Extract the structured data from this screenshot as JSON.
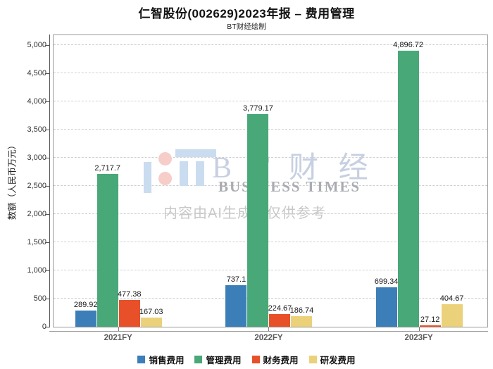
{
  "chart_data": {
    "type": "bar",
    "title": "仁智股份(002629)2023年报 – 费用管理",
    "subtitle": "BT财经绘制",
    "ylabel": "数额（人民币万元）",
    "ylim": [
      0,
      5000
    ],
    "ytick_step": 500,
    "grid": "horizontal-dashed",
    "legend_position": "bottom",
    "categories": [
      "2021FY",
      "2022FY",
      "2023FY"
    ],
    "series": [
      {
        "name": "销售费用",
        "color": "#3b7eb8",
        "values": [
          289.92,
          737.1,
          699.34
        ]
      },
      {
        "name": "管理费用",
        "color": "#49a878",
        "values": [
          2717.7,
          3779.17,
          4896.72
        ]
      },
      {
        "name": "财务费用",
        "color": "#e8502a",
        "values": [
          477.38,
          224.67,
          27.12
        ]
      },
      {
        "name": "研发费用",
        "color": "#ebd179",
        "values": [
          167.03,
          186.74,
          404.67
        ]
      }
    ]
  },
  "watermark": {
    "brand_cn": "B T 财 经",
    "brand_en": "BUSINESS TIMES",
    "disclaimer": "内容由AI生成，仅供参考",
    "logo_blue": "#cadcef",
    "logo_pink": "#f6cdc9"
  }
}
